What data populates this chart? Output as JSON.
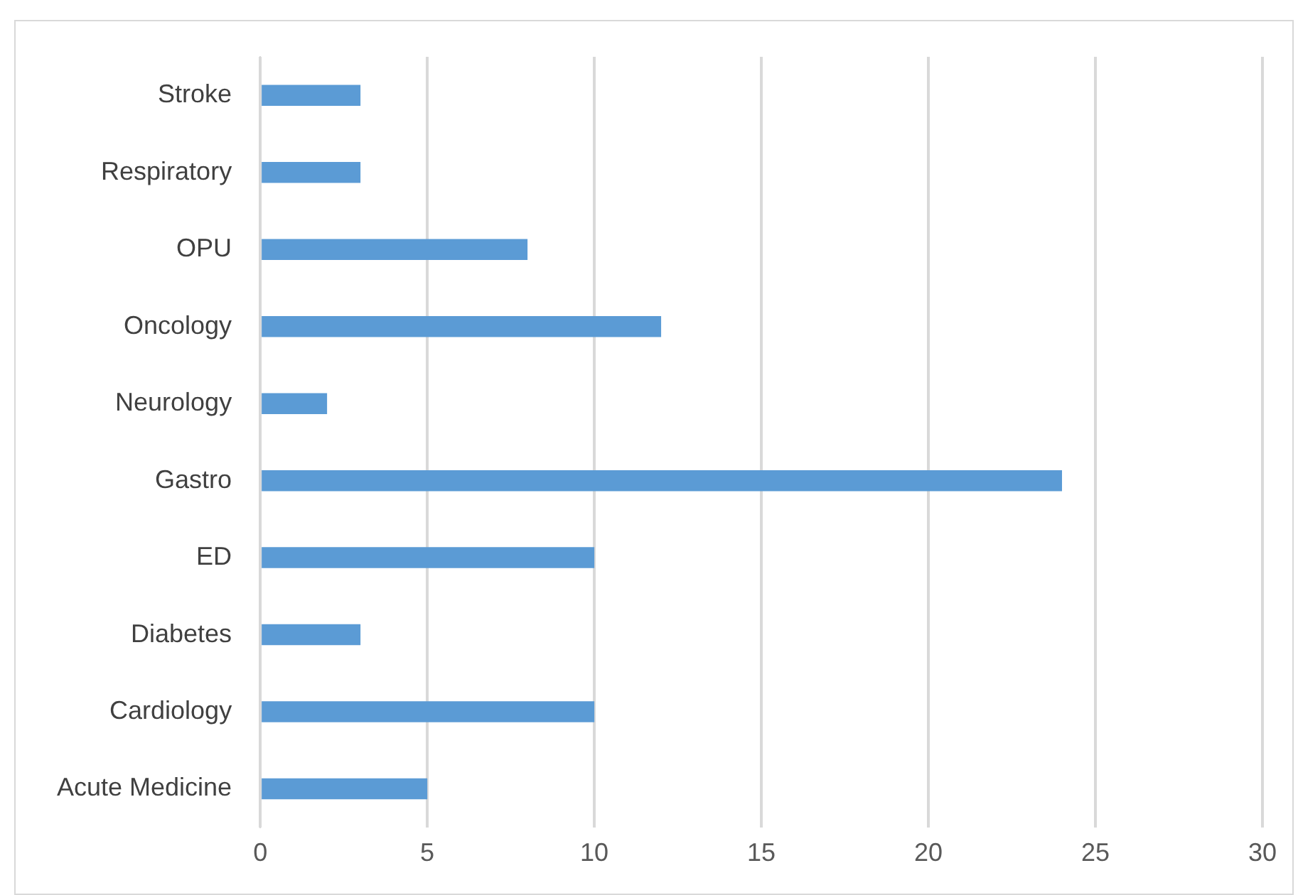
{
  "chart_data": {
    "type": "bar",
    "orientation": "horizontal",
    "categories": [
      "Stroke",
      "Respiratory",
      "OPU",
      "Oncology",
      "Neurology",
      "Gastro",
      "ED",
      "Diabetes",
      "Cardiology",
      "Acute Medicine"
    ],
    "values": [
      3,
      3,
      8,
      12,
      2,
      24,
      10,
      3,
      10,
      5
    ],
    "color": "#5b9bd5",
    "xlim": [
      0,
      30
    ],
    "xticks": [
      0,
      5,
      10,
      15,
      20,
      25,
      30
    ],
    "grid": "x",
    "legend": false
  }
}
